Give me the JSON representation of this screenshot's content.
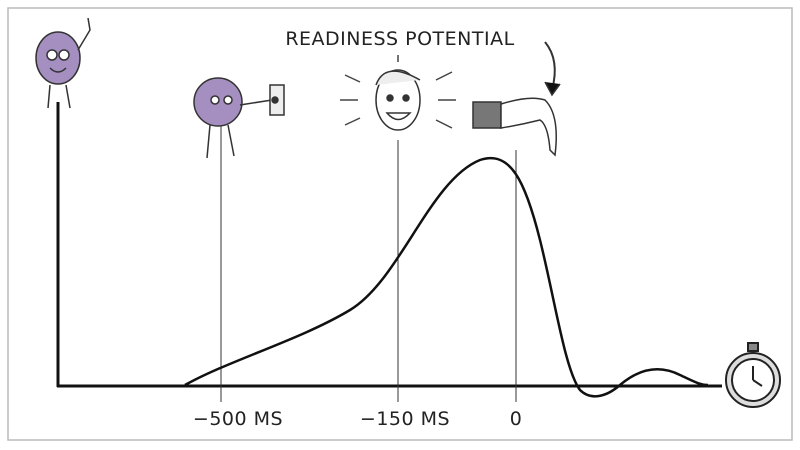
{
  "title": "READINESS POTENTIAL",
  "ticks": [
    "−500 MS",
    "−150 MS",
    "0"
  ]
}
